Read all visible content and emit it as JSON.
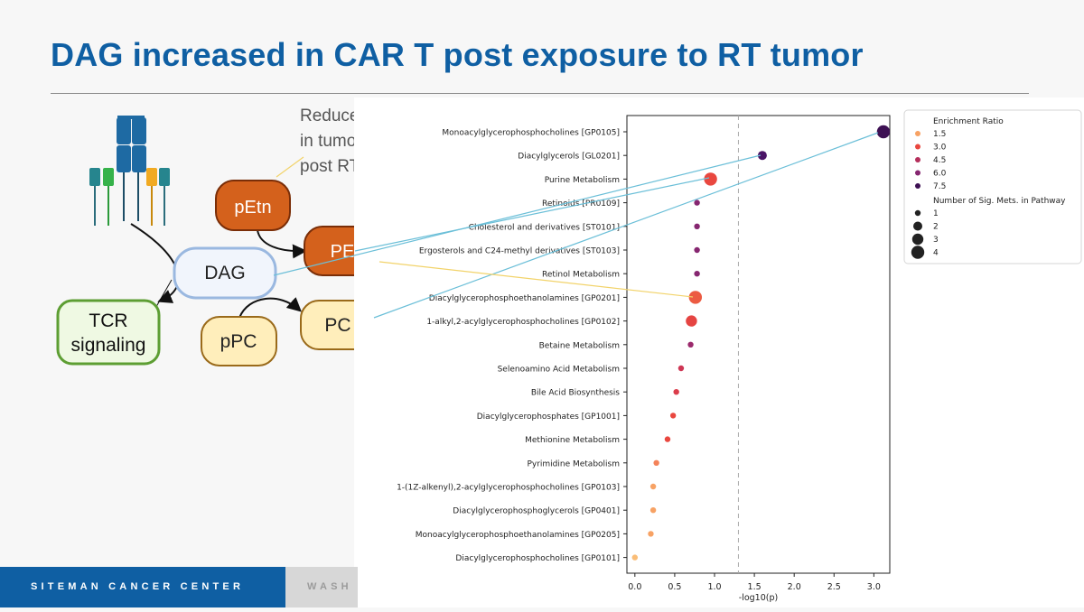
{
  "slide": {
    "title": "DAG increased in CAR T post exposure to RT tumor",
    "footer_left": "SITEMAN CANCER CENTER",
    "footer_right": "WASH"
  },
  "pathway_diagram": {
    "annotation_lines": [
      "Reduced",
      "in tumor",
      "post RT"
    ],
    "nodes": {
      "pEtn": "pEtn",
      "PE": "PE",
      "DAG": "DAG",
      "PC": "PC",
      "pPC": "pPC",
      "TCR_line1": "TCR",
      "TCR_line2": "signaling"
    },
    "colors": {
      "pEtn_fill": "#d4611c",
      "PE_fill": "#d4611c",
      "DAG_fill": "#f1f5fc",
      "DAG_stroke": "#9ab8e0",
      "PC_fill": "#ffeebb",
      "PC_stroke": "#9a6a1a",
      "TCR_fill": "#eff9e3",
      "TCR_stroke": "#5d9e33",
      "connector_blue": "#6bbfd8",
      "connector_yellow": "#f2d36a"
    }
  },
  "chart_data": {
    "type": "scatter",
    "xlabel": "-log10(p)",
    "xlim": [
      -0.1,
      3.2
    ],
    "xticks": [
      0.0,
      0.5,
      1.0,
      1.5,
      2.0,
      2.5,
      3.0
    ],
    "xtick_labels": [
      "0.0",
      "0.5",
      "1.0",
      "1.5",
      "2.0",
      "2.5",
      "3.0"
    ],
    "threshold_x": 1.3,
    "categories": [
      "Monoacylglycerophosphocholines [GP0105]",
      "Diacylglycerols [GL0201]",
      "Purine Metabolism",
      "Retinoids [PR0109]",
      "Cholesterol and derivatives [ST0101]",
      "Ergosterols and C24-methyl derivatives [ST0103]",
      "Retinol Metabolism",
      "Diacylglycerophosphoethanolamines [GP0201]",
      "1-alkyl,2-acylglycerophosphocholines [GP0102]",
      "Betaine Metabolism",
      "Selenoamino Acid Metabolism",
      "Bile Acid Biosynthesis",
      "Diacylglycerophosphates [GP1001]",
      "Methionine Metabolism",
      "Pyrimidine Metabolism",
      "1-(1Z-alkenyl),2-acylglycerophosphocholines [GP0103]",
      "Diacylglycerophosphoglycerols [GP0401]",
      "Monoacylglycerophosphoethanolamines [GP0205]",
      "Diacylglycerophosphocholines [GP0101]"
    ],
    "x": [
      3.12,
      1.6,
      0.95,
      0.78,
      0.78,
      0.78,
      0.78,
      0.76,
      0.71,
      0.7,
      0.58,
      0.52,
      0.48,
      0.41,
      0.27,
      0.23,
      0.23,
      0.2,
      0.0
    ],
    "enrichment_ratio": [
      7.5,
      8.0,
      3.0,
      6.0,
      6.0,
      6.0,
      6.0,
      2.8,
      3.2,
      5.5,
      4.0,
      3.5,
      3.0,
      3.0,
      2.0,
      1.5,
      1.5,
      1.5,
      1.2
    ],
    "num_sig_mets": [
      4,
      2,
      4,
      1,
      1,
      1,
      1,
      4,
      3,
      1,
      1,
      1,
      1,
      1,
      1,
      1,
      1,
      1,
      1
    ],
    "colors": [
      "#3d1053",
      "#4a1466",
      "#e9473f",
      "#862670",
      "#862670",
      "#862670",
      "#862670",
      "#ec5b42",
      "#e54442",
      "#9b2a6c",
      "#ce3654",
      "#db3d4b",
      "#e9473f",
      "#e9473f",
      "#f4835a",
      "#f7a264",
      "#f7a264",
      "#f7a264",
      "#fabd77"
    ],
    "legend": {
      "color_title": "Enrichment Ratio",
      "color_entries": [
        {
          "label": "1.5",
          "color": "#f7a264"
        },
        {
          "label": "3.0",
          "color": "#e9473f"
        },
        {
          "label": "4.5",
          "color": "#b52f5c"
        },
        {
          "label": "6.0",
          "color": "#862670"
        },
        {
          "label": "7.5",
          "color": "#3d1053"
        }
      ],
      "size_title": "Number of Sig. Mets. in Pathway",
      "size_entries": [
        {
          "label": "1",
          "value": 1
        },
        {
          "label": "2",
          "value": 2
        },
        {
          "label": "3",
          "value": 3
        },
        {
          "label": "4",
          "value": 4
        }
      ],
      "position": "top-right"
    },
    "grid": false
  }
}
